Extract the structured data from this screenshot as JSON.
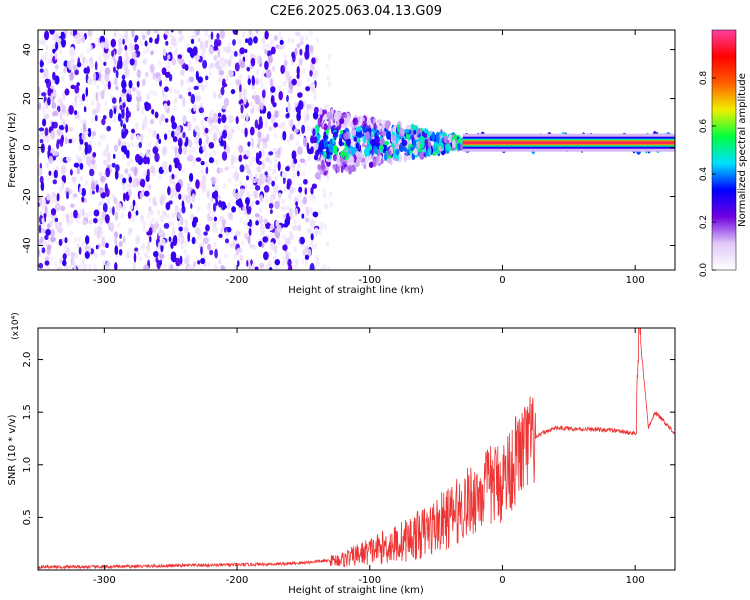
{
  "title": "C2E6.2025.063.04.13.G09",
  "chart_data": [
    {
      "type": "heatmap",
      "xlabel": "Height of straight line (km)",
      "ylabel": "Frequency (Hz)",
      "xlim": [
        -350,
        130
      ],
      "ylim": [
        -50,
        48
      ],
      "xticks": [
        -300,
        -200,
        -100,
        0,
        100
      ],
      "yticks": [
        -40,
        -20,
        0,
        20,
        40
      ],
      "colorbar": {
        "label": "Normalized spectral amplitude",
        "range": [
          0,
          1
        ],
        "ticks": [
          "0.0",
          "0.2",
          "0.4",
          "0.6",
          "0.8"
        ],
        "colormap": [
          "#ffffff",
          "#e0c8f8",
          "#7000e0",
          "#0000ff",
          "#00e0ff",
          "#00ff40",
          "#f0f000",
          "#ff6000",
          "#ff0000",
          "#ff40a0"
        ]
      },
      "line_signal": {
        "frequency_hz": 2,
        "x_from": -30,
        "x_to": 130,
        "amplitude": 0.95
      }
    },
    {
      "type": "line",
      "xlabel": "Height of straight line (km)",
      "ylabel": "SNR (10 * v/v)",
      "y_multiplier": "(x10⁴)",
      "xlim": [
        -350,
        130
      ],
      "ylim": [
        0,
        2.3
      ],
      "xticks": [
        -300,
        -200,
        -100,
        0,
        100
      ],
      "yticks": [
        "0.5",
        "1.0",
        "1.5",
        "2.0"
      ],
      "color": "#ee3333",
      "x": [
        -350,
        -300,
        -250,
        -200,
        -160,
        -140,
        -120,
        -100,
        -80,
        -60,
        -40,
        -30,
        -20,
        -10,
        0,
        10,
        20,
        30,
        40,
        60,
        80,
        100,
        103,
        110,
        115,
        130
      ],
      "y": [
        0.03,
        0.03,
        0.04,
        0.05,
        0.06,
        0.08,
        0.1,
        0.18,
        0.25,
        0.35,
        0.5,
        0.6,
        0.7,
        0.8,
        0.85,
        1.05,
        1.2,
        1.3,
        1.35,
        1.34,
        1.33,
        1.3,
        2.3,
        1.35,
        1.5,
        1.3
      ]
    }
  ]
}
